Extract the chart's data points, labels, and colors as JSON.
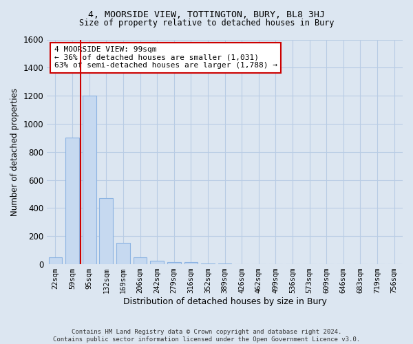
{
  "title": "4, MOORSIDE VIEW, TOTTINGTON, BURY, BL8 3HJ",
  "subtitle": "Size of property relative to detached houses in Bury",
  "xlabel": "Distribution of detached houses by size in Bury",
  "ylabel": "Number of detached properties",
  "footer_line1": "Contains HM Land Registry data © Crown copyright and database right 2024.",
  "footer_line2": "Contains public sector information licensed under the Open Government Licence v3.0.",
  "annotation_line1": "4 MOORSIDE VIEW: 99sqm",
  "annotation_line2": "← 36% of detached houses are smaller (1,031)",
  "annotation_line3": "63% of semi-detached houses are larger (1,788) →",
  "bar_color": "#c6d9f0",
  "bar_edge_color": "#8db4e2",
  "grid_color": "#b8cce4",
  "background_color": "#dce6f1",
  "annotation_box_color": "#ffffff",
  "annotation_box_edge": "#cc0000",
  "vline_color": "#cc0000",
  "categories": [
    "22sqm",
    "59sqm",
    "95sqm",
    "132sqm",
    "169sqm",
    "206sqm",
    "242sqm",
    "279sqm",
    "316sqm",
    "352sqm",
    "389sqm",
    "426sqm",
    "462sqm",
    "499sqm",
    "536sqm",
    "573sqm",
    "609sqm",
    "646sqm",
    "683sqm",
    "719sqm",
    "756sqm"
  ],
  "values": [
    50,
    900,
    1200,
    470,
    150,
    50,
    25,
    15,
    15,
    5,
    3,
    2,
    1,
    0,
    0,
    0,
    0,
    0,
    0,
    0,
    0
  ],
  "ylim": [
    0,
    1600
  ],
  "yticks": [
    0,
    200,
    400,
    600,
    800,
    1000,
    1200,
    1400,
    1600
  ]
}
